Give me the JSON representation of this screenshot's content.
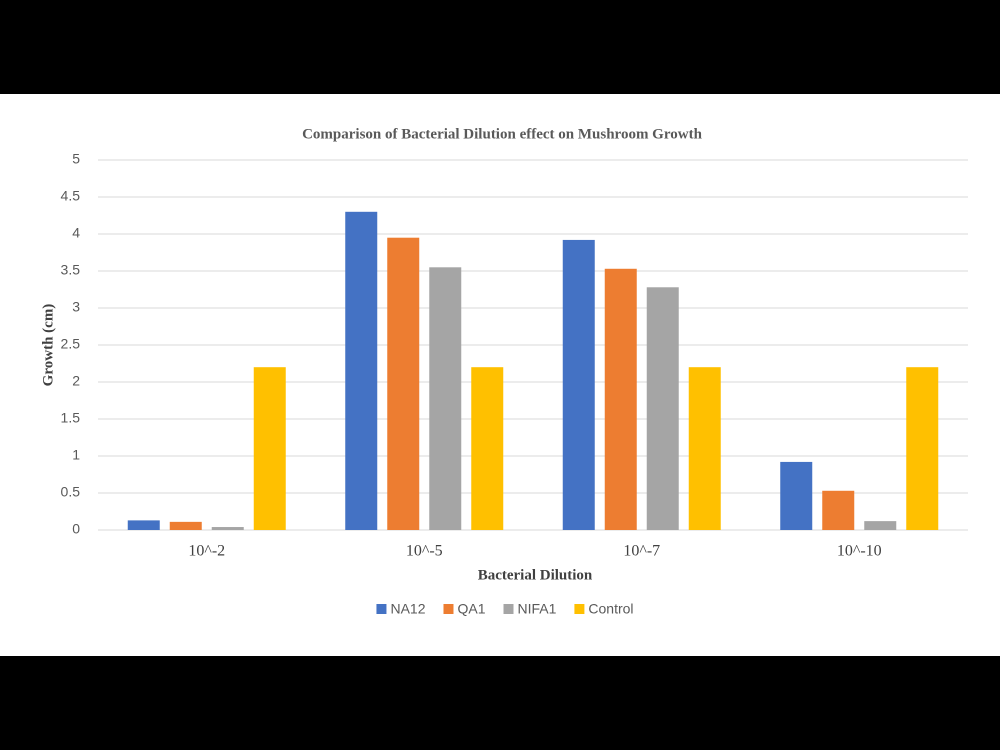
{
  "chart_data": {
    "type": "bar",
    "title": "Comparison  of  Bacterial Dilution  effect on Mushroom  Growth",
    "x_label": "Bacterial Dilution",
    "y_label": "Growth (cm)",
    "categories": [
      "10^-2",
      "10^-5",
      "10^-7",
      "10^-10"
    ],
    "series": [
      {
        "name": "NA12",
        "color": "#4472c4",
        "values": [
          0.13,
          4.3,
          3.92,
          0.92
        ]
      },
      {
        "name": "QA1",
        "color": "#ed7d31",
        "values": [
          0.11,
          3.95,
          3.53,
          0.53
        ]
      },
      {
        "name": "NIFA1",
        "color": "#a5a5a5",
        "values": [
          0.04,
          3.55,
          3.28,
          0.12
        ]
      },
      {
        "name": "Control",
        "color": "#ffc000",
        "values": [
          2.2,
          2.2,
          2.2,
          2.2
        ]
      }
    ],
    "ylim": [
      0,
      5
    ],
    "yticks": [
      0,
      0.5,
      1,
      1.5,
      2,
      2.5,
      3,
      3.5,
      4,
      4.5,
      5
    ],
    "grid": true,
    "legend": "bottom"
  }
}
